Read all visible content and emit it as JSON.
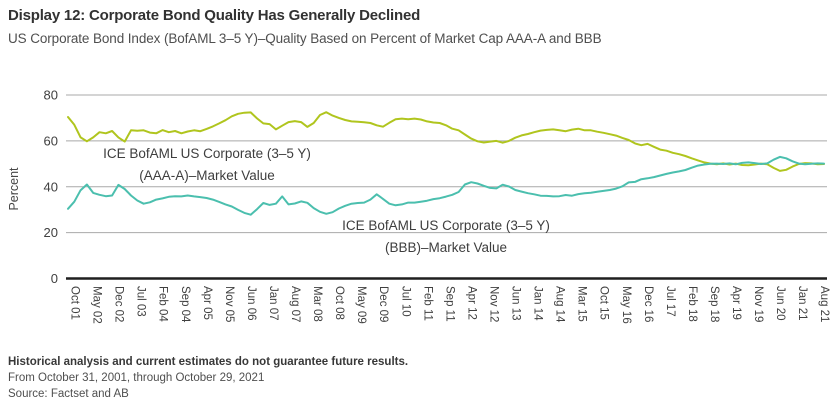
{
  "header": {
    "title": "Display 12: Corporate Bond Quality Has Generally Declined",
    "subtitle": "US Corporate Bond Index (BofAML 3–5 Y)–Quality Based on Percent of Market Cap AAA-A and BBB"
  },
  "footer": {
    "disclaimer": "Historical analysis and current estimates do not guarantee future results.",
    "period": "From October 31, 2001, through October 29, 2021",
    "source": "Source: Factset and AB"
  },
  "chart_data": {
    "type": "line",
    "title": "Display 12: Corporate Bond Quality Has Generally Declined",
    "xlabel": "",
    "ylabel": "Percent",
    "ylim": [
      0,
      80
    ],
    "yticks": [
      0,
      20,
      40,
      60,
      80
    ],
    "grid": true,
    "grid_color": "#a9a9a9",
    "axis_color": "#1f1f1f",
    "tick_label_color": "#404040",
    "x_tick_labels": [
      "Oct 01",
      "May 02",
      "Dec 02",
      "Jul 03",
      "Feb 04",
      "Sep 04",
      "Apr 05",
      "Nov 05",
      "Jun 06",
      "Jan 07",
      "Aug 07",
      "Mar 08",
      "Oct 08",
      "May 09",
      "Dec 09",
      "Jul 10",
      "Feb 11",
      "Sep 11",
      "Apr 12",
      "Nov 12",
      "Jun 13",
      "Jan 14",
      "Aug 14",
      "Mar 15",
      "Oct 15",
      "May 16",
      "Dec 16",
      "Jul 17",
      "Feb 18",
      "Sep 18",
      "Apr 19",
      "Nov 19",
      "Jun 20",
      "Jan 21",
      "Aug 21"
    ],
    "x_tick_months": [
      0,
      7,
      14,
      21,
      28,
      35,
      42,
      49,
      56,
      63,
      70,
      77,
      84,
      91,
      98,
      105,
      112,
      119,
      126,
      133,
      140,
      147,
      154,
      161,
      168,
      175,
      182,
      189,
      196,
      203,
      210,
      217,
      224,
      231,
      238
    ],
    "x_range_months": [
      0,
      240
    ],
    "months_per_point": 2,
    "series": [
      {
        "name": "ICE BofAML US Corporate (3–5 Y) (AAA-A)–Market Value",
        "label_line1": "ICE BofAML US Corporate (3–5 Y)",
        "label_line2": "(AAA-A)–Market Value",
        "color": "#b0c51e",
        "values": [
          70.4,
          67.0,
          61.5,
          59.8,
          61.5,
          63.8,
          63.3,
          64.3,
          61.5,
          59.7,
          64.6,
          64.4,
          64.6,
          63.6,
          63.3,
          64.7,
          63.8,
          64.3,
          63.3,
          64.1,
          64.6,
          64.2,
          65.2,
          66.3,
          67.6,
          69.0,
          70.7,
          71.8,
          72.3,
          72.4,
          69.8,
          67.6,
          67.3,
          65.0,
          66.6,
          68.2,
          68.6,
          68.2,
          66.1,
          67.8,
          71.3,
          72.5,
          71.0,
          70.0,
          69.1,
          68.5,
          68.3,
          68.1,
          67.8,
          66.8,
          66.2,
          67.9,
          69.4,
          69.7,
          69.4,
          69.7,
          69.3,
          68.5,
          68.0,
          67.8,
          66.8,
          65.3,
          64.6,
          62.8,
          61.0,
          59.8,
          59.3,
          59.7,
          60.0,
          59.2,
          60.0,
          61.4,
          62.4,
          63.0,
          63.8,
          64.5,
          64.8,
          65.0,
          64.6,
          64.2,
          64.9,
          65.3,
          64.6,
          64.6,
          64.0,
          63.5,
          62.9,
          62.3,
          61.3,
          60.4,
          58.9,
          58.1,
          58.7,
          57.4,
          56.2,
          55.7,
          54.8,
          54.2,
          53.4,
          52.4,
          51.5,
          50.6,
          50.1,
          49.8,
          50.2,
          49.7,
          50.1,
          49.5,
          49.4,
          49.7,
          50.1,
          49.8,
          48.2,
          46.9,
          47.4,
          48.8,
          49.9,
          50.3,
          50.2,
          49.8,
          49.9
        ]
      },
      {
        "name": "ICE BofAML US Corporate (3–5 Y) (BBB)–Market Value",
        "label_line1": "ICE BofAML US Corporate (3–5 Y)",
        "label_line2": "(BBB)–Market Value",
        "color": "#4bbfae",
        "values": [
          30.4,
          33.5,
          38.5,
          41.0,
          37.3,
          36.5,
          35.9,
          36.2,
          40.8,
          39.0,
          36.2,
          34.0,
          32.6,
          33.2,
          34.4,
          34.9,
          35.6,
          35.9,
          35.8,
          36.2,
          35.8,
          35.5,
          35.1,
          34.4,
          33.4,
          32.3,
          31.4,
          29.9,
          28.6,
          27.8,
          30.2,
          32.9,
          32.1,
          32.6,
          35.8,
          32.3,
          32.7,
          33.6,
          33.0,
          30.7,
          29.1,
          28.2,
          28.9,
          30.5,
          31.7,
          32.6,
          32.9,
          33.1,
          34.4,
          36.7,
          34.7,
          32.6,
          31.9,
          32.3,
          33.1,
          33.1,
          33.5,
          33.9,
          34.6,
          35.0,
          35.7,
          36.5,
          37.7,
          41.0,
          42.0,
          41.4,
          40.4,
          39.5,
          39.3,
          40.9,
          40.1,
          38.6,
          37.9,
          37.2,
          36.7,
          36.1,
          36.0,
          35.8,
          35.9,
          36.4,
          36.1,
          36.8,
          37.2,
          37.4,
          37.8,
          38.2,
          38.6,
          39.2,
          40.2,
          41.9,
          42.1,
          43.3,
          43.7,
          44.2,
          44.9,
          45.6,
          46.2,
          46.7,
          47.3,
          48.3,
          49.2,
          49.7,
          50.0,
          50.1,
          49.9,
          50.2,
          49.8,
          50.4,
          50.6,
          50.3,
          49.9,
          50.2,
          51.8,
          53.0,
          52.4,
          51.1,
          50.1,
          49.8,
          50.0,
          50.2,
          50.1
        ]
      }
    ]
  }
}
